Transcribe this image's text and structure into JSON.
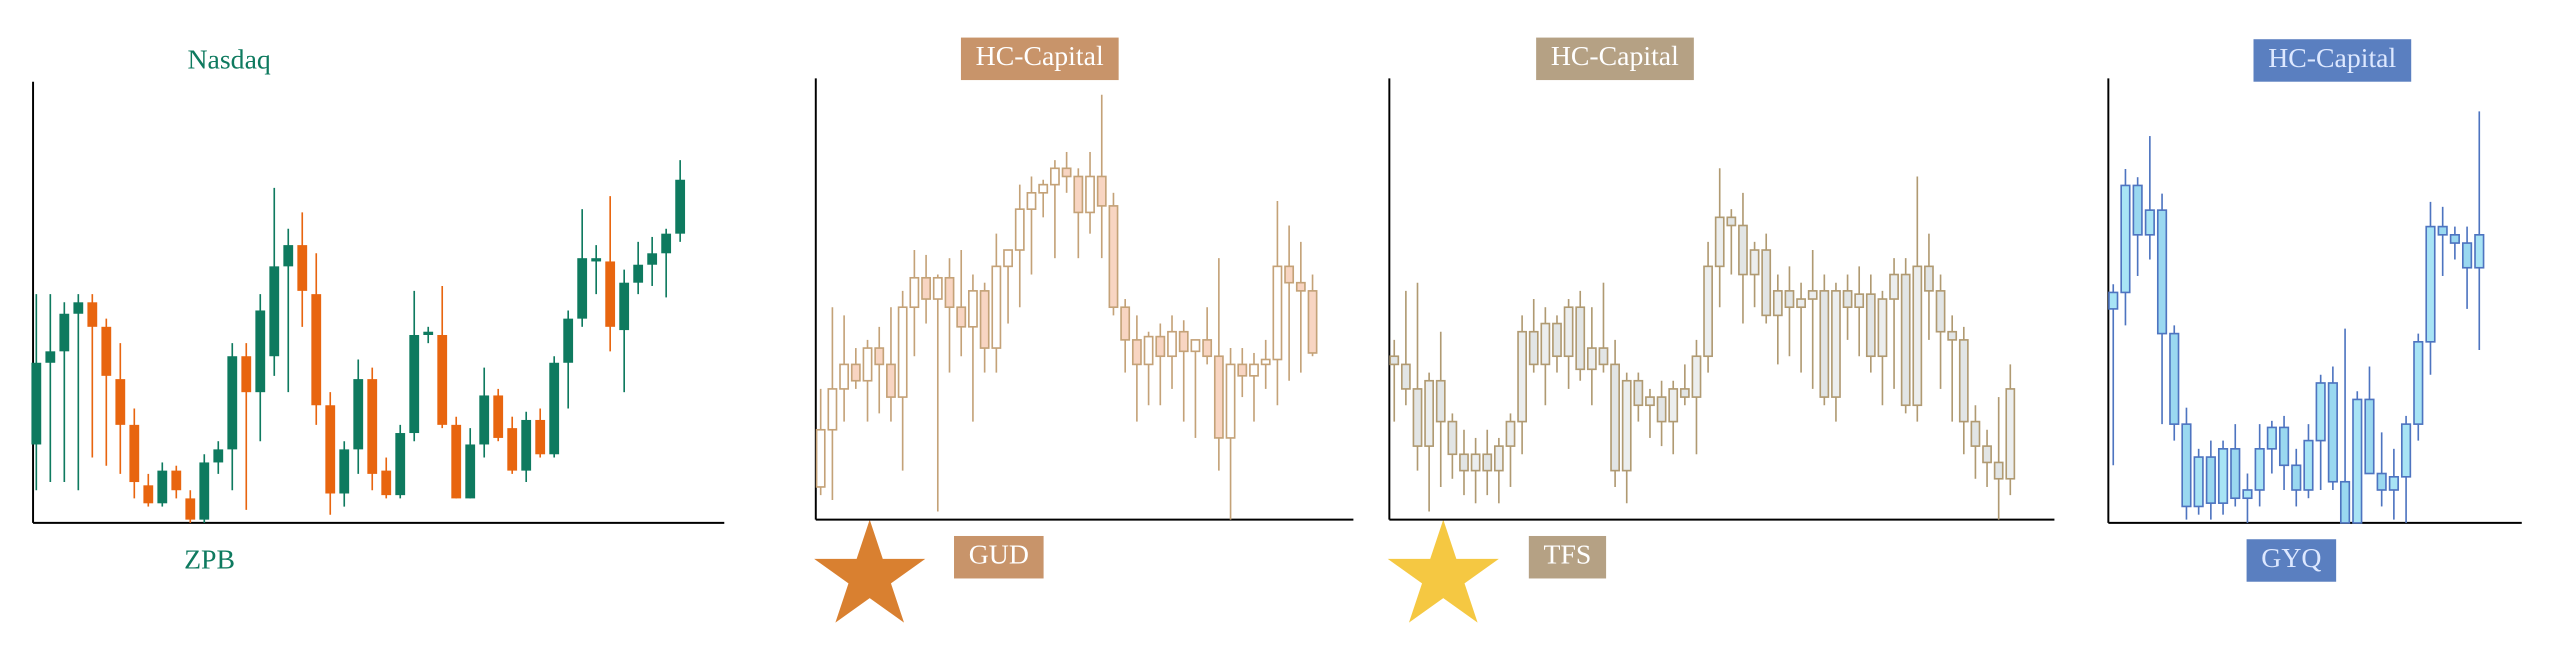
{
  "chart_data": [
    {
      "type": "candlestick",
      "title": "Nasdaq",
      "subtitle": "ZPB",
      "text_color": "#0e7a5f",
      "up_color": "#0e7a5f",
      "down_color": "#e8650f",
      "ylim": [
        0,
        270
      ],
      "open": [
        48,
        98,
        105,
        128,
        135,
        120,
        88,
        60,
        23,
        12,
        32,
        15,
        2,
        37,
        45,
        102,
        80,
        102,
        157,
        170,
        140,
        72,
        18,
        45,
        88,
        32,
        17,
        55,
        115,
        115,
        60,
        15,
        48,
        78,
        58,
        32,
        63,
        42,
        98,
        125,
        160,
        160,
        118,
        147,
        158,
        165,
        177
      ],
      "high": [
        140,
        140,
        135,
        140,
        140,
        125,
        110,
        70,
        30,
        37,
        35,
        20,
        42,
        50,
        110,
        110,
        140,
        205,
        180,
        190,
        165,
        80,
        50,
        100,
        95,
        40,
        60,
        142,
        120,
        145,
        65,
        58,
        95,
        82,
        65,
        68,
        70,
        102,
        130,
        192,
        170,
        200,
        155,
        172,
        175,
        180,
        222
      ],
      "low": [
        20,
        25,
        25,
        20,
        40,
        35,
        30,
        15,
        10,
        10,
        15,
        0,
        0,
        30,
        20,
        8,
        50,
        90,
        80,
        120,
        60,
        5,
        10,
        30,
        20,
        15,
        15,
        50,
        110,
        58,
        15,
        15,
        40,
        50,
        30,
        25,
        40,
        40,
        70,
        120,
        140,
        105,
        80,
        140,
        145,
        138,
        172
      ],
      "close": [
        98,
        105,
        128,
        135,
        120,
        90,
        60,
        25,
        12,
        32,
        20,
        2,
        37,
        45,
        102,
        80,
        130,
        157,
        170,
        142,
        72,
        18,
        45,
        88,
        30,
        17,
        55,
        115,
        117,
        60,
        15,
        48,
        78,
        52,
        32,
        63,
        42,
        98,
        125,
        162,
        162,
        120,
        147,
        158,
        165,
        177,
        210
      ]
    },
    {
      "type": "candlestick",
      "title": "HC-Capital",
      "subtitle": "GUD",
      "text_color": "#ffffff",
      "box_color": "#c8946a",
      "up_color": "#ffffff",
      "down_color": "#f8d5c2",
      "edge_color": "#c4a278",
      "ylim": [
        0,
        270
      ],
      "open": [
        20,
        55,
        80,
        95,
        85,
        105,
        95,
        75,
        130,
        148,
        135,
        148,
        130,
        118,
        140,
        105,
        155,
        165,
        190,
        200,
        205,
        215,
        210,
        188,
        210,
        192,
        130,
        110,
        95,
        112,
        100,
        115,
        103,
        110,
        100,
        50,
        95,
        88,
        95,
        98,
        155,
        145,
        140
      ],
      "high": [
        80,
        130,
        125,
        105,
        110,
        118,
        130,
        140,
        165,
        162,
        150,
        160,
        165,
        150,
        145,
        175,
        165,
        205,
        210,
        208,
        220,
        225,
        215,
        225,
        260,
        200,
        135,
        125,
        115,
        120,
        125,
        122,
        110,
        130,
        160,
        105,
        105,
        102,
        110,
        195,
        180,
        170,
        150
      ],
      "low": [
        15,
        12,
        60,
        80,
        60,
        65,
        60,
        30,
        100,
        120,
        5,
        90,
        100,
        60,
        90,
        90,
        120,
        130,
        150,
        185,
        160,
        200,
        160,
        175,
        160,
        125,
        90,
        60,
        70,
        70,
        80,
        60,
        50,
        95,
        30,
        0,
        75,
        60,
        80,
        70,
        85,
        90,
        100
      ],
      "close": [
        55,
        80,
        95,
        85,
        105,
        95,
        75,
        130,
        148,
        135,
        148,
        130,
        118,
        140,
        105,
        155,
        165,
        190,
        200,
        205,
        215,
        210,
        188,
        210,
        192,
        130,
        110,
        95,
        112,
        100,
        115,
        103,
        110,
        100,
        50,
        95,
        88,
        95,
        98,
        155,
        145,
        140,
        102
      ]
    },
    {
      "type": "candlestick",
      "title": "HC-Capital",
      "subtitle": "TFS",
      "text_color": "#ffffff",
      "box_color": "#b5a184",
      "up_color": "#eceeee",
      "down_color": "#e2e5e5",
      "edge_color": "#b09a72",
      "ylim": [
        0,
        270
      ],
      "open": [
        100,
        95,
        80,
        45,
        85,
        60,
        40,
        30,
        40,
        30,
        45,
        60,
        115,
        95,
        120,
        100,
        130,
        92,
        105,
        95,
        30,
        85,
        70,
        75,
        60,
        80,
        75,
        100,
        155,
        185,
        180,
        150,
        165,
        125,
        140,
        130,
        135,
        140,
        75,
        140,
        130,
        138,
        100,
        135,
        150,
        70,
        155,
        140,
        115,
        110,
        60,
        45,
        35,
        25
      ],
      "high": [
        110,
        140,
        145,
        90,
        115,
        65,
        55,
        50,
        55,
        50,
        65,
        125,
        135,
        130,
        125,
        135,
        140,
        130,
        145,
        110,
        90,
        90,
        80,
        85,
        85,
        95,
        110,
        170,
        215,
        190,
        200,
        170,
        175,
        150,
        155,
        145,
        165,
        150,
        145,
        150,
        155,
        150,
        140,
        160,
        160,
        210,
        175,
        150,
        125,
        118,
        70,
        55,
        75,
        95
      ],
      "low": [
        60,
        70,
        30,
        5,
        20,
        25,
        15,
        10,
        15,
        10,
        20,
        40,
        90,
        70,
        90,
        80,
        85,
        70,
        90,
        20,
        10,
        60,
        50,
        45,
        40,
        70,
        40,
        90,
        130,
        150,
        120,
        130,
        120,
        95,
        100,
        90,
        80,
        70,
        60,
        110,
        100,
        90,
        70,
        80,
        65,
        60,
        110,
        80,
        60,
        40,
        25,
        20,
        0,
        15
      ],
      "close": [
        95,
        80,
        45,
        85,
        60,
        40,
        30,
        40,
        30,
        45,
        60,
        115,
        95,
        120,
        100,
        130,
        92,
        105,
        95,
        30,
        85,
        70,
        75,
        60,
        80,
        75,
        100,
        155,
        185,
        180,
        150,
        165,
        125,
        140,
        130,
        135,
        140,
        75,
        140,
        130,
        138,
        100,
        135,
        150,
        70,
        155,
        140,
        115,
        110,
        60,
        45,
        35,
        25,
        80
      ]
    },
    {
      "type": "candlestick",
      "title": "HC-Capital",
      "subtitle": "GYQ",
      "text_color": "#dde8ff",
      "box_color": "#5a7fc0",
      "up_color": "#a8e4f5",
      "down_color": "#9ad8f0",
      "edge_color": "#4e74c0",
      "ylim": [
        0,
        270
      ],
      "open": [
        130,
        140,
        205,
        175,
        190,
        115,
        60,
        10,
        40,
        12,
        45,
        15,
        20,
        45,
        58,
        35,
        20,
        50,
        85,
        25,
        0,
        75,
        30,
        20,
        28,
        60,
        110,
        180,
        175,
        170,
        155
      ],
      "high": [
        145,
        215,
        210,
        235,
        200,
        120,
        70,
        45,
        50,
        50,
        60,
        30,
        60,
        62,
        65,
        45,
        60,
        90,
        95,
        118,
        80,
        95,
        55,
        45,
        65,
        115,
        195,
        192,
        180,
        180,
        250
      ],
      "low": [
        35,
        120,
        150,
        160,
        60,
        50,
        2,
        5,
        2,
        5,
        10,
        0,
        10,
        30,
        20,
        10,
        15,
        20,
        20,
        0,
        0,
        30,
        10,
        2,
        0,
        50,
        90,
        150,
        160,
        130,
        105
      ],
      "close": [
        140,
        205,
        175,
        190,
        115,
        60,
        10,
        40,
        12,
        45,
        15,
        20,
        45,
        58,
        35,
        20,
        50,
        85,
        25,
        0,
        75,
        30,
        20,
        28,
        60,
        110,
        180,
        175,
        170,
        155,
        175
      ]
    }
  ]
}
